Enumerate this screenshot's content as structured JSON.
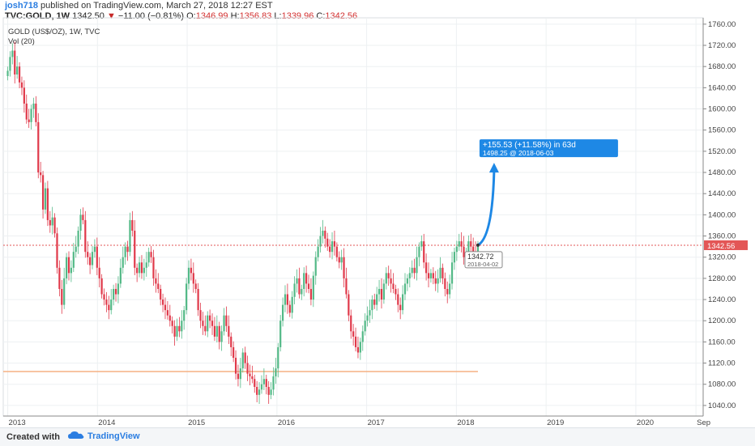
{
  "header": {
    "author": "josh718",
    "published_text": "published on TradingView.com, March 27, 2018 12:27 EST",
    "symbol": "TVC:GOLD, 1W",
    "last": "1342.50",
    "change_arrow": "▼",
    "change": "−11.00 (−0.81%)",
    "open_label": "O:",
    "open": "1346.99",
    "high_label": "H:",
    "high": "1356.83",
    "low_label": "L:",
    "low": "1339.96",
    "close_label": "C:",
    "close": "1342.56"
  },
  "footer": {
    "created_with": "Created with",
    "brand": "TradingView"
  },
  "colors": {
    "up": "#26a69a",
    "up_fill": "#53b987",
    "down": "#ef5350",
    "down_fill": "#e0394a",
    "price_line": "#e35656",
    "support": "#f5b183",
    "projection": "#1e88e5",
    "grid": "#edf0f2"
  },
  "chart_data": {
    "type": "candlestick",
    "legend_title": "GOLD (US$/OZ), 1W, TVC",
    "volume_label": "Vol (20)",
    "y_ticks": [
      1040,
      1080,
      1120,
      1160,
      1200,
      1240,
      1280,
      1320,
      1360,
      1400,
      1440,
      1480,
      1520,
      1560,
      1600,
      1640,
      1680,
      1720,
      1760
    ],
    "y_tick_labels": [
      "1040.00",
      "1080.00",
      "1120.00",
      "1160.00",
      "1200.00",
      "1240.00",
      "1280.00",
      "1320.00",
      "1360.00",
      "1400.00",
      "1440.00",
      "1480.00",
      "1520.00",
      "1560.00",
      "1600.00",
      "1640.00",
      "1680.00",
      "1720.00",
      "1760.00"
    ],
    "ylim": [
      1020,
      1772
    ],
    "x_ticks": [
      2013,
      2014,
      2015,
      2016,
      2017,
      2018,
      2019,
      2020,
      2020.67
    ],
    "x_tick_labels": [
      "2013",
      "2014",
      "2015",
      "2016",
      "2017",
      "2018",
      "2019",
      "2020",
      "Sep"
    ],
    "xlim": [
      2012.95,
      2020.75
    ],
    "current_price": 1342.56,
    "current_price_label": "1342.56",
    "support_level": 1104,
    "support_range": [
      2012.95,
      2018.24
    ],
    "projection": {
      "start": {
        "x": 2018.24,
        "y": 1342.72
      },
      "end": {
        "x": 2018.42,
        "y": 1498.25
      },
      "change_label": "+155.53 (+11.58%) in 63d",
      "target_label": "1498.25",
      "target_date": "@ 2018-06-03",
      "start_price_label": "1342.72",
      "start_date_label": "2018-04-02"
    },
    "weekly_closes": [
      1672,
      1698,
      1710,
      1665,
      1680,
      1650,
      1640,
      1610,
      1580,
      1575,
      1600,
      1610,
      1575,
      1480,
      1475,
      1410,
      1450,
      1390,
      1380,
      1395,
      1365,
      1300,
      1260,
      1230,
      1280,
      1320,
      1290,
      1300,
      1330,
      1340,
      1370,
      1400,
      1390,
      1330,
      1320,
      1305,
      1330,
      1340,
      1300,
      1280,
      1250,
      1240,
      1230,
      1220,
      1240,
      1260,
      1250,
      1270,
      1300,
      1320,
      1340,
      1330,
      1390,
      1370,
      1300,
      1290,
      1310,
      1290,
      1300,
      1310,
      1330,
      1320,
      1280,
      1270,
      1260,
      1240,
      1230,
      1220,
      1210,
      1200,
      1190,
      1170,
      1190,
      1180,
      1200,
      1220,
      1270,
      1300,
      1290,
      1270,
      1260,
      1220,
      1200,
      1190,
      1180,
      1210,
      1200,
      1190,
      1170,
      1190,
      1160,
      1180,
      1210,
      1190,
      1170,
      1150,
      1130,
      1100,
      1090,
      1110,
      1140,
      1120,
      1100,
      1095,
      1090,
      1075,
      1060,
      1070,
      1080,
      1090,
      1075,
      1060,
      1070,
      1095,
      1110,
      1150,
      1200,
      1230,
      1250,
      1230,
      1215,
      1245,
      1270,
      1280,
      1250,
      1260,
      1290,
      1270,
      1260,
      1240,
      1285,
      1320,
      1340,
      1360,
      1370,
      1355,
      1340,
      1330,
      1350,
      1340,
      1320,
      1310,
      1320,
      1280,
      1250,
      1210,
      1180,
      1170,
      1150,
      1140,
      1160,
      1180,
      1200,
      1210,
      1220,
      1240,
      1230,
      1250,
      1260,
      1240,
      1270,
      1290,
      1280,
      1270,
      1260,
      1250,
      1230,
      1220,
      1250,
      1270,
      1280,
      1290,
      1300,
      1290,
      1320,
      1340,
      1350,
      1310,
      1290,
      1280,
      1290,
      1280,
      1270,
      1280,
      1300,
      1280,
      1260,
      1250,
      1270,
      1310,
      1330,
      1340,
      1350,
      1340,
      1320,
      1330,
      1350,
      1340,
      1330,
      1320,
      1342.5
    ]
  }
}
